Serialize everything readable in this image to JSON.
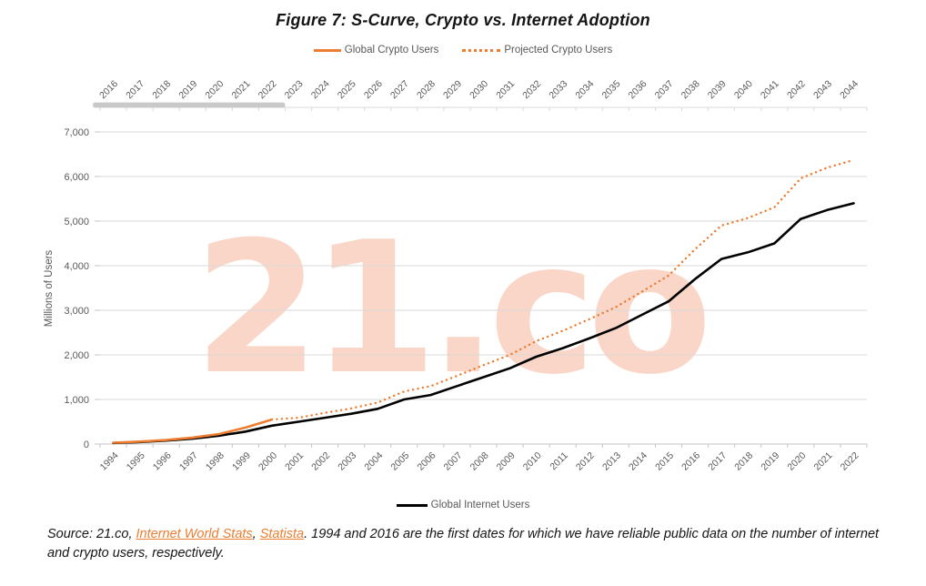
{
  "figure": {
    "title": "Figure 7: S-Curve, Crypto vs. Internet Adoption"
  },
  "watermark": {
    "text": "21.co"
  },
  "legend_top": [
    {
      "label": "Global Crypto Users",
      "style": "solid"
    },
    {
      "label": "Projected Crypto Users",
      "style": "dotted"
    }
  ],
  "legend_bottom": [
    {
      "label": "Global Internet Users",
      "style": "solid"
    }
  ],
  "colors": {
    "crypto_orange": "#ED7D31",
    "internet_black": "#000000",
    "axis_text": "#595959",
    "gridline": "#DADADA",
    "axis_line": "#C6C6C6",
    "actual_range_bar": "#C9C9C9",
    "watermark": "#F8D0BE",
    "link": "#ED7D31"
  },
  "chart_data": {
    "type": "line",
    "title": "Figure 7: S-Curve, Crypto vs. Internet Adoption",
    "ylabel": "Millions of Users",
    "ylim": [
      0,
      7000
    ],
    "grid": "horizontal",
    "yticks": [
      {
        "value": 0,
        "label": "0"
      },
      {
        "value": 1000,
        "label": "1,000"
      },
      {
        "value": 2000,
        "label": "2,000"
      },
      {
        "value": 3000,
        "label": "3,000"
      },
      {
        "value": 4000,
        "label": "4,000"
      },
      {
        "value": 5000,
        "label": "5,000"
      },
      {
        "value": 6000,
        "label": "6,000"
      },
      {
        "value": 7000,
        "label": "7,000"
      }
    ],
    "x_axis_bottom": {
      "years": [
        1994,
        1995,
        1996,
        1997,
        1998,
        1999,
        2000,
        2001,
        2002,
        2003,
        2004,
        2005,
        2006,
        2007,
        2008,
        2009,
        2010,
        2011,
        2012,
        2013,
        2014,
        2015,
        2016,
        2017,
        2018,
        2019,
        2020,
        2021,
        2022
      ]
    },
    "x_axis_top": {
      "years": [
        2016,
        2017,
        2018,
        2019,
        2020,
        2021,
        2022,
        2023,
        2024,
        2025,
        2026,
        2027,
        2028,
        2029,
        2030,
        2031,
        2032,
        2033,
        2034,
        2035,
        2036,
        2037,
        2038,
        2039,
        2040,
        2041,
        2042,
        2043,
        2044
      ],
      "actual_data_range": [
        2016,
        2022
      ]
    },
    "series": [
      {
        "name": "Global Internet Users",
        "axis": "bottom",
        "style": "solid",
        "color": "#000000",
        "x": [
          1994,
          1995,
          1996,
          1997,
          1998,
          1999,
          2000,
          2001,
          2002,
          2003,
          2004,
          2005,
          2006,
          2007,
          2008,
          2009,
          2010,
          2011,
          2012,
          2013,
          2014,
          2015,
          2016,
          2017,
          2018,
          2019,
          2020,
          2021,
          2022
        ],
        "values": [
          25,
          45,
          77,
          120,
          188,
          280,
          412,
          500,
          590,
          680,
          790,
          1000,
          1100,
          1300,
          1500,
          1700,
          1960,
          2150,
          2370,
          2600,
          2900,
          3200,
          3700,
          4150,
          4300,
          4500,
          5050,
          5250,
          5400
        ]
      },
      {
        "name": "Global Crypto Users",
        "axis": "top",
        "style": "solid",
        "color": "#ED7D31",
        "x": [
          2016,
          2017,
          2018,
          2019,
          2020,
          2021,
          2022
        ],
        "values": [
          30,
          55,
          90,
          145,
          225,
          370,
          550
        ]
      },
      {
        "name": "Projected Crypto Users",
        "axis": "top",
        "style": "dotted",
        "color": "#ED7D31",
        "x": [
          2022,
          2023,
          2024,
          2025,
          2026,
          2027,
          2028,
          2029,
          2030,
          2031,
          2032,
          2033,
          2034,
          2035,
          2036,
          2037,
          2038,
          2039,
          2040,
          2041,
          2042,
          2043,
          2044
        ],
        "values": [
          550,
          590,
          700,
          800,
          930,
          1180,
          1300,
          1530,
          1770,
          2000,
          2310,
          2540,
          2800,
          3070,
          3420,
          3780,
          4370,
          4900,
          5070,
          5310,
          5960,
          6200,
          6370
        ]
      }
    ],
    "legend_position": {
      "crypto": "top-center",
      "internet": "bottom-center"
    }
  },
  "source": {
    "prefix": "Source: 21.co, ",
    "link1": "Internet World Stats",
    "sep": ", ",
    "link2": "Statista",
    "suffix": ". 1994 and 2016 are the first dates for which we have reliable public data on the number of internet and crypto users, respectively."
  }
}
